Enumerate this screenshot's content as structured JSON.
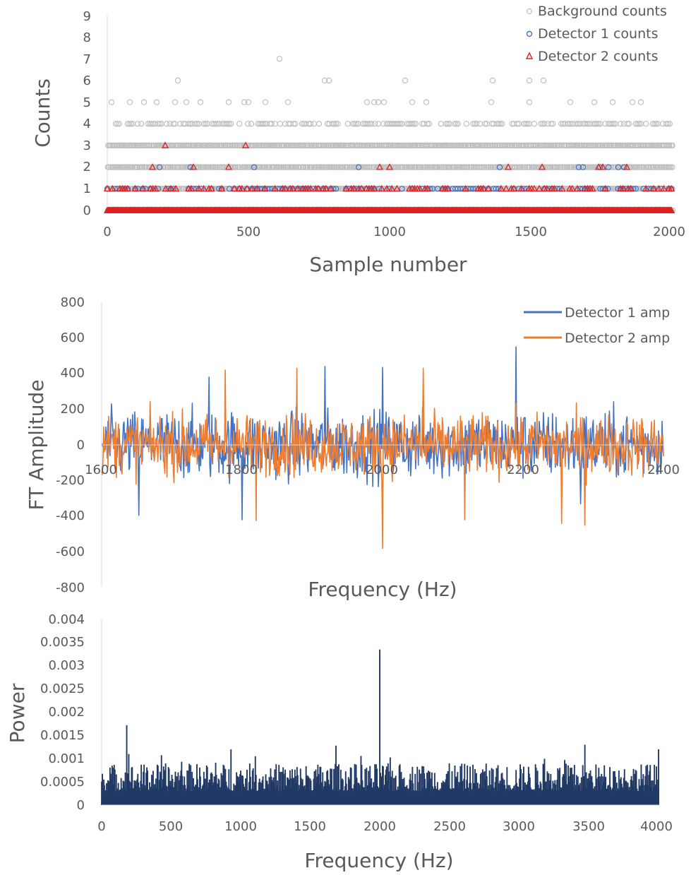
{
  "chart_data": [
    {
      "type": "scatter",
      "title": "",
      "xlabel": "Sample number",
      "ylabel": "Counts",
      "xlim": [
        0,
        2000
      ],
      "ylim": [
        0,
        9
      ],
      "x_ticks": [
        "0",
        "500",
        "1000",
        "1500",
        "2000"
      ],
      "y_ticks": [
        "0",
        "1",
        "2",
        "3",
        "4",
        "5",
        "6",
        "7",
        "8",
        "9"
      ],
      "grid": false,
      "legend_position": "top-right",
      "series": [
        {
          "name": "Background counts",
          "marker": "circle",
          "color": "#bfbfbf",
          "points": [
            [
              250,
              6
            ],
            [
              610,
              7
            ],
            [
              770,
              6
            ],
            [
              785,
              6
            ],
            [
              1055,
              6
            ],
            [
              1365,
              6
            ],
            [
              1495,
              6
            ],
            [
              1545,
              6
            ],
            [
              15,
              5
            ],
            [
              80,
              5
            ],
            [
              130,
              5
            ],
            [
              175,
              5
            ],
            [
              240,
              5
            ],
            [
              280,
              5
            ],
            [
              330,
              5
            ],
            [
              430,
              5
            ],
            [
              485,
              5
            ],
            [
              500,
              5
            ],
            [
              560,
              5
            ],
            [
              640,
              5
            ],
            [
              920,
              5
            ],
            [
              945,
              5
            ],
            [
              960,
              5
            ],
            [
              980,
              5
            ],
            [
              1080,
              5
            ],
            [
              1130,
              5
            ],
            [
              1360,
              5
            ],
            [
              1495,
              5
            ],
            [
              1640,
              5
            ],
            [
              1725,
              5
            ],
            [
              1790,
              5
            ],
            [
              1860,
              5
            ],
            [
              1890,
              5
            ]
          ],
          "dense_levels": [
            0,
            1,
            2,
            3
          ],
          "level4_density": "frequent, intermittent"
        },
        {
          "name": "Detector 1 counts",
          "marker": "circle",
          "color": "#4472c4",
          "points": [
            [
              185,
              2
            ],
            [
              295,
              2
            ],
            [
              520,
              2
            ],
            [
              890,
              2
            ],
            [
              1390,
              2
            ],
            [
              1670,
              2
            ],
            [
              1685,
              2
            ],
            [
              1745,
              2
            ],
            [
              1775,
              2
            ],
            [
              1810,
              2
            ],
            [
              1830,
              2
            ]
          ],
          "dense_levels": [
            0,
            1
          ]
        },
        {
          "name": "Detector 2 counts",
          "marker": "triangle",
          "color": "#e02020",
          "points": [
            [
              205,
              3
            ],
            [
              490,
              3
            ],
            [
              160,
              2
            ],
            [
              305,
              2
            ],
            [
              430,
              2
            ],
            [
              965,
              2
            ],
            [
              1000,
              2
            ],
            [
              1420,
              2
            ],
            [
              1540,
              2
            ],
            [
              1740,
              2
            ],
            [
              1755,
              2
            ],
            [
              1840,
              2
            ]
          ],
          "dense_levels": [
            0,
            1
          ]
        }
      ]
    },
    {
      "type": "line",
      "title": "",
      "xlabel": "Frequency (Hz)",
      "ylabel": "FT Amplitude",
      "xlim": [
        1600,
        2400
      ],
      "ylim": [
        -800,
        800
      ],
      "x_ticks": [
        "1600",
        "1800",
        "2000",
        "2200",
        "2400"
      ],
      "y_ticks": [
        "800",
        "600",
        "400",
        "200",
        "0",
        "-200",
        "-400",
        "-600",
        "-800"
      ],
      "grid": false,
      "legend_position": "top-right",
      "series": [
        {
          "name": "Detector 1 amp",
          "color": "#4472c4",
          "typical_range": [
            -280,
            280
          ],
          "peaks": [
            [
              2190,
              550
            ],
            [
              1918,
              440
            ],
            [
              2000,
              435
            ],
            [
              2282,
              385
            ],
            [
              1753,
              380
            ],
            [
              1800,
              -420
            ],
            [
              1653,
              -395
            ],
            [
              2282,
              -330
            ]
          ]
        },
        {
          "name": "Detector 2 amp",
          "color": "#ed7d31",
          "typical_range": [
            -250,
            250
          ],
          "peaks": [
            [
              1878,
              430
            ],
            [
              2058,
              430
            ],
            [
              1776,
              420
            ],
            [
              2000,
              -580
            ],
            [
              2288,
              -450
            ],
            [
              1820,
              -425
            ],
            [
              2117,
              -420
            ],
            [
              2255,
              -440
            ]
          ]
        }
      ]
    },
    {
      "type": "bar",
      "title": "",
      "xlabel": "Frequency (Hz)",
      "ylabel": "Power",
      "xlim": [
        0,
        4000
      ],
      "ylim": [
        0,
        0.004
      ],
      "x_ticks": [
        "0",
        "500",
        "1000",
        "1500",
        "2000",
        "2500",
        "3000",
        "3500",
        "4000"
      ],
      "y_ticks": [
        "0.004",
        "0.0035",
        "0.003",
        "0.0025",
        "0.002",
        "0.0015",
        "0.001",
        "0.0005",
        "0"
      ],
      "grid": false,
      "series": [
        {
          "name": "",
          "color": "#203864",
          "typical_range": [
            0.0003,
            0.0009
          ],
          "peaks": [
            [
              2000,
              0.00335
            ],
            [
              180,
              0.00172
            ],
            [
              1685,
              0.00128
            ],
            [
              3475,
              0.0013
            ],
            [
              930,
              0.0012
            ],
            [
              195,
              0.0011
            ],
            [
              4005,
              0.0012
            ]
          ]
        }
      ]
    }
  ]
}
